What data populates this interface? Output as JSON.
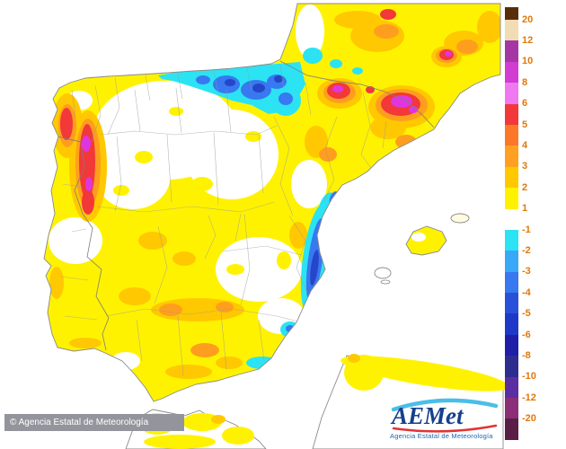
{
  "legend": {
    "unit_labels": [
      "20",
      "12",
      "10",
      "8",
      "6",
      "5",
      "4",
      "3",
      "2",
      "1",
      "-1",
      "-2",
      "-3",
      "-4",
      "-5",
      "-6",
      "-8",
      "-10",
      "-12",
      "-20"
    ],
    "swatch_colors": [
      "#5A2D0A",
      "#F2DCB3",
      "#A437A4",
      "#D23CD2",
      "#F078F0",
      "#F23838",
      "#FA7828",
      "#FFA020",
      "#FFC800",
      "#FFF200",
      "#FFFFFF",
      "#2BE3F3",
      "#38A8F8",
      "#3878F0",
      "#2850D8",
      "#2038C8",
      "#1E1EA8",
      "#2D2D8F",
      "#5A2DA0",
      "#8C2D78",
      "#5A1E46"
    ],
    "label_color": "#E0780A"
  },
  "footer": {
    "copyright": "© Agencia Estatal de Meteorología",
    "bar_color": "#94949C"
  },
  "logo": {
    "text": "AEMet",
    "caption": "Agencia Estatal de Meteorología",
    "text_color": "#16408C",
    "caption_color": "#1A66B8",
    "arc_color": "#49BEE8",
    "swoosh_color": "#E23333"
  },
  "map_palette": {
    "sea": "#FFFFFF",
    "zero": "#FFFFFF",
    "plus1": "#FFF200",
    "plus2": "#FFC800",
    "plus3": "#FF9E1E",
    "plus5": "#F23838",
    "plus8": "#DF35DF",
    "minus1": "#2BE3F3",
    "minus3": "#3878F0",
    "minus5": "#2546C8",
    "legendLabel": "#E0780A",
    "copyrightBg": "#94949C",
    "logoCaption": "#1A66B8"
  }
}
